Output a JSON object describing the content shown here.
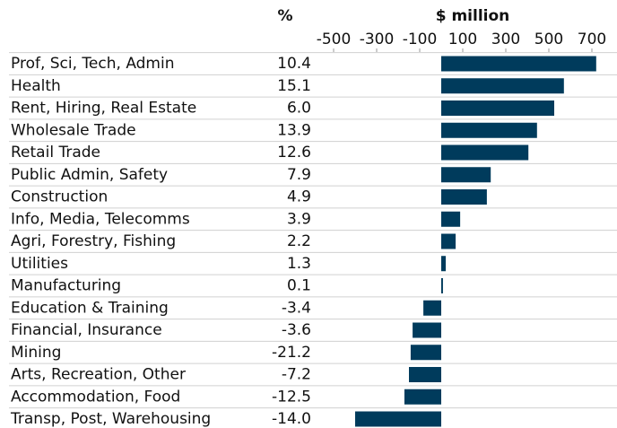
{
  "chart_data": {
    "type": "bar",
    "orientation": "horizontal",
    "pct_header": "%",
    "value_header": "$ million",
    "categories": [
      "Prof, Sci, Tech, Admin",
      "Health",
      "Rent, Hiring, Real Estate",
      "Wholesale Trade",
      "Retail Trade",
      "Public Admin, Safety",
      "Construction",
      "Info, Media, Telecomms",
      "Agri, Forestry, Fishing",
      "Utilities",
      "Manufacturing",
      "Education & Training",
      "Financial, Insurance",
      "Mining",
      "Arts, Recreation, Other",
      "Accommodation, Food",
      "Transp, Post, Warehousing"
    ],
    "pct": [
      "10.4",
      "15.1",
      "6.0",
      "13.9",
      "12.6",
      "7.9",
      "4.9",
      "3.9",
      "2.2",
      "1.3",
      "0.1",
      "-3.4",
      "-3.6",
      "-21.2",
      "-7.2",
      "-12.5",
      "-14.0"
    ],
    "values": [
      720,
      570,
      525,
      445,
      405,
      230,
      212,
      88,
      67,
      21,
      8,
      -83,
      -133,
      -142,
      -150,
      -171,
      -400
    ],
    "color": "#003b5c",
    "xlim": [
      -600,
      800
    ],
    "xticks": [
      -500,
      -300,
      -100,
      100,
      300,
      500,
      700
    ]
  }
}
